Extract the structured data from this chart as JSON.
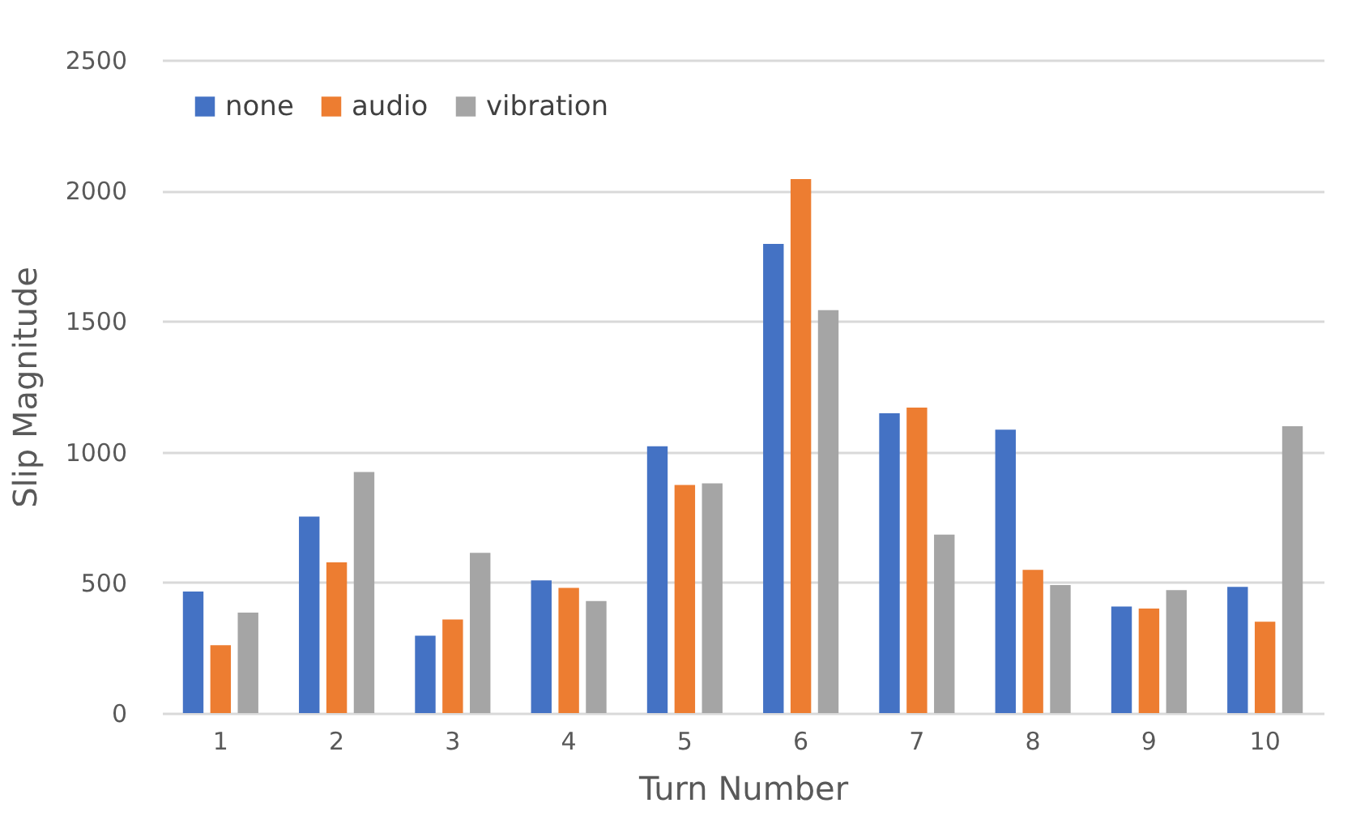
{
  "chart_data": {
    "type": "bar",
    "xlabel": "Turn Number",
    "ylabel": "Slip Magnitude",
    "categories": [
      "1",
      "2",
      "3",
      "4",
      "5",
      "6",
      "7",
      "8",
      "9",
      "10"
    ],
    "series": [
      {
        "name": "none",
        "color": "#4472c4",
        "values": [
          465,
          752,
          296,
          508,
          1021,
          1796,
          1148,
          1085,
          408,
          483
        ]
      },
      {
        "name": "audio",
        "color": "#ed7d31",
        "values": [
          260,
          577,
          358,
          479,
          873,
          2044,
          1169,
          548,
          400,
          350
        ]
      },
      {
        "name": "vibration",
        "color": "#a5a5a5",
        "values": [
          385,
          923,
          613,
          429,
          879,
          1542,
          683,
          490,
          471,
          1098
        ]
      }
    ],
    "ylim": [
      0,
      2500
    ],
    "yticks": [
      0,
      500,
      1000,
      1500,
      2000,
      2500
    ],
    "grid": "y",
    "legend": "top left"
  }
}
